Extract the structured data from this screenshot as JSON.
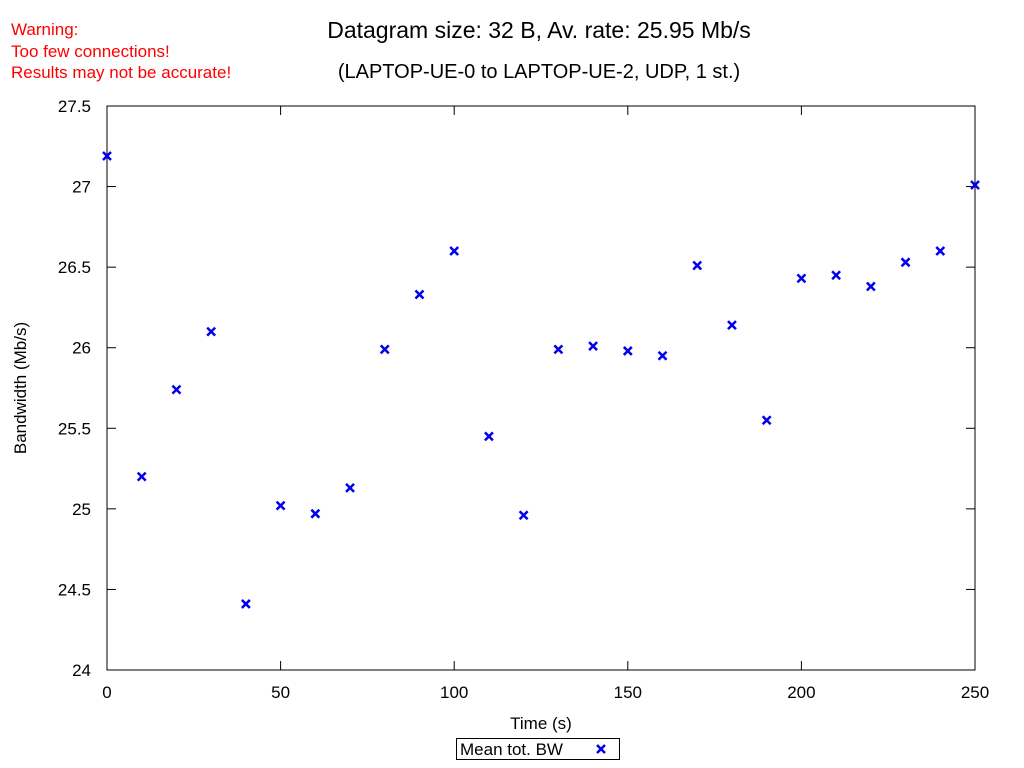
{
  "warning": {
    "line1": "Warning:",
    "line2": "Too few connections!",
    "line3": "Results may not be accurate!",
    "color": "#ff0000"
  },
  "chart_data": {
    "type": "scatter",
    "title": "Datagram size: 32 B, Av. rate: 25.95 Mb/s",
    "subtitle": "(LAPTOP-UE-0 to LAPTOP-UE-2, UDP, 1 st.)",
    "xlabel": "Time (s)",
    "ylabel": "Bandwidth (Mb/s)",
    "xlim": [
      0,
      250
    ],
    "ylim": [
      24,
      27.5
    ],
    "xticks": [
      0,
      50,
      100,
      150,
      200,
      250
    ],
    "yticks": [
      24,
      24.5,
      25,
      25.5,
      26,
      26.5,
      27,
      27.5
    ],
    "grid": false,
    "legend_position": "bottom-center",
    "series": [
      {
        "name": "Mean tot. BW",
        "marker": "x",
        "color": "#0000ee",
        "x": [
          0,
          10,
          20,
          30,
          40,
          50,
          60,
          70,
          80,
          90,
          100,
          110,
          120,
          130,
          140,
          150,
          160,
          170,
          180,
          190,
          200,
          210,
          220,
          230,
          240,
          250
        ],
        "y": [
          27.19,
          25.2,
          25.74,
          26.1,
          24.41,
          25.02,
          24.97,
          25.13,
          25.99,
          26.33,
          26.6,
          25.45,
          24.96,
          25.99,
          26.01,
          25.98,
          25.95,
          26.51,
          26.14,
          25.55,
          26.43,
          26.45,
          26.38,
          26.53,
          26.6,
          27.01
        ]
      }
    ]
  }
}
